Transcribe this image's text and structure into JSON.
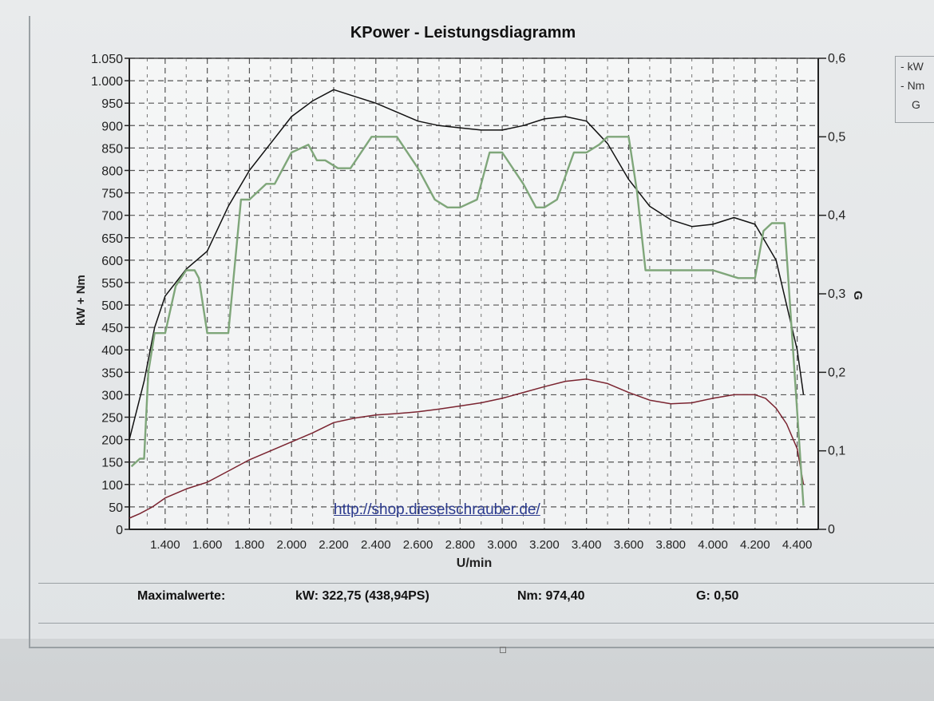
{
  "chart_data": {
    "type": "line",
    "title": "KPower - Leistungsdiagramm",
    "xlabel": "U/min",
    "ylabel": "kW + Nm",
    "y2label": "G",
    "xlim": [
      1230,
      4500
    ],
    "ylim": [
      0,
      1050
    ],
    "y2lim": [
      0,
      0.6
    ],
    "x_ticks": [
      1400,
      1600,
      1800,
      2000,
      2200,
      2400,
      2600,
      2800,
      3000,
      3200,
      3400,
      3600,
      3800,
      4000,
      4200,
      4400
    ],
    "x_tick_labels": [
      "1.400",
      "1.600",
      "1.800",
      "2.000",
      "2.200",
      "2.400",
      "2.600",
      "2.800",
      "3.000",
      "3.200",
      "3.400",
      "3.600",
      "3.800",
      "4.000",
      "4.200",
      "4.400"
    ],
    "y_ticks": [
      0,
      50,
      100,
      150,
      200,
      250,
      300,
      350,
      400,
      450,
      500,
      550,
      600,
      650,
      700,
      750,
      800,
      850,
      900,
      950,
      1000,
      1050
    ],
    "y_tick_labels": [
      "0",
      "50",
      "100",
      "150",
      "200",
      "250",
      "300",
      "350",
      "400",
      "450",
      "500",
      "550",
      "600",
      "650",
      "700",
      "750",
      "800",
      "850",
      "900",
      "950",
      "1.000",
      "1.050"
    ],
    "y2_ticks": [
      0,
      0.1,
      0.2,
      0.3,
      0.4,
      0.5,
      0.6
    ],
    "y2_tick_labels": [
      "0",
      "0,1",
      "0,2",
      "0,3",
      "0,4",
      "0,5",
      "0,6"
    ],
    "grid": true,
    "legend_position": "right",
    "annotation": "http://shop.dieselschrauber.de/",
    "series": [
      {
        "name": "kW",
        "color": "#7a2430",
        "axis": "left",
        "x": [
          1230,
          1280,
          1340,
          1400,
          1500,
          1600,
          1700,
          1800,
          1900,
          2000,
          2100,
          2200,
          2300,
          2400,
          2500,
          2600,
          2700,
          2800,
          2900,
          3000,
          3100,
          3200,
          3300,
          3400,
          3500,
          3600,
          3700,
          3800,
          3900,
          4000,
          4100,
          4200,
          4250,
          4300,
          4350,
          4400,
          4430
        ],
        "y": [
          25,
          35,
          50,
          70,
          90,
          105,
          130,
          155,
          175,
          195,
          215,
          238,
          248,
          255,
          258,
          262,
          268,
          275,
          282,
          292,
          305,
          318,
          330,
          335,
          325,
          305,
          288,
          280,
          282,
          292,
          300,
          300,
          292,
          270,
          235,
          180,
          100
        ]
      },
      {
        "name": "Nm",
        "color": "#111111",
        "axis": "left",
        "x": [
          1230,
          1300,
          1350,
          1400,
          1500,
          1600,
          1700,
          1800,
          1900,
          2000,
          2100,
          2200,
          2300,
          2400,
          2500,
          2600,
          2700,
          2800,
          2900,
          3000,
          3100,
          3200,
          3300,
          3400,
          3500,
          3600,
          3700,
          3800,
          3900,
          4000,
          4100,
          4200,
          4300,
          4350,
          4400,
          4430
        ],
        "y": [
          200,
          330,
          450,
          520,
          580,
          620,
          720,
          800,
          860,
          920,
          955,
          980,
          965,
          950,
          930,
          910,
          900,
          895,
          890,
          890,
          900,
          915,
          920,
          910,
          860,
          780,
          720,
          690,
          675,
          680,
          695,
          680,
          600,
          500,
          400,
          300
        ]
      },
      {
        "name": "G",
        "color": "#7fa67a",
        "axis": "right",
        "x": [
          1240,
          1280,
          1300,
          1320,
          1350,
          1400,
          1450,
          1500,
          1540,
          1560,
          1600,
          1640,
          1700,
          1760,
          1800,
          1880,
          1920,
          2000,
          2080,
          2120,
          2160,
          2220,
          2280,
          2380,
          2420,
          2500,
          2600,
          2680,
          2740,
          2800,
          2880,
          2940,
          3000,
          3100,
          3160,
          3200,
          3260,
          3300,
          3340,
          3400,
          3460,
          3500,
          3600,
          3640,
          3680,
          3700,
          3780,
          3880,
          4000,
          4120,
          4200,
          4240,
          4280,
          4340,
          4370,
          4400,
          4430
        ],
        "y": [
          0.08,
          0.09,
          0.09,
          0.2,
          0.25,
          0.25,
          0.31,
          0.33,
          0.33,
          0.32,
          0.25,
          0.25,
          0.25,
          0.42,
          0.42,
          0.44,
          0.44,
          0.48,
          0.49,
          0.47,
          0.47,
          0.46,
          0.46,
          0.5,
          0.5,
          0.5,
          0.46,
          0.42,
          0.41,
          0.41,
          0.42,
          0.48,
          0.48,
          0.44,
          0.41,
          0.41,
          0.42,
          0.45,
          0.48,
          0.48,
          0.49,
          0.5,
          0.5,
          0.43,
          0.33,
          0.33,
          0.33,
          0.33,
          0.33,
          0.32,
          0.32,
          0.38,
          0.39,
          0.39,
          0.27,
          0.15,
          0.03
        ]
      }
    ]
  },
  "legend": {
    "items": [
      "kW",
      "Nm",
      "G"
    ]
  },
  "maxvalues": {
    "label": "Maximalwerte:",
    "kw": "kW: 322,75 (438,94PS)",
    "nm": "Nm: 974,40",
    "g": "G: 0,50"
  },
  "colors": {
    "grid": "#555555",
    "axis": "#222222",
    "kw_line": "#7a2430",
    "nm_line": "#111111",
    "g_line": "#7fa67a",
    "link": "#2b3a8e"
  }
}
